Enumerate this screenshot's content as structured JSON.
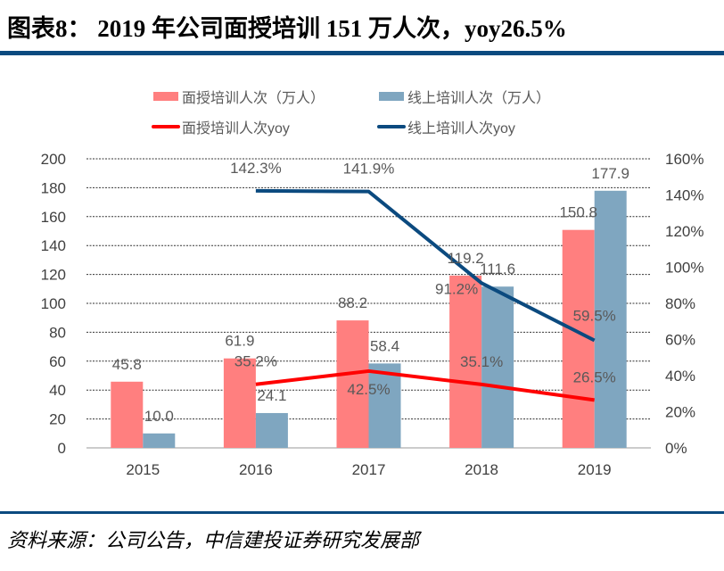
{
  "title": "图表8： 2019 年公司面授培训 151 万人次，yoy26.5%",
  "source": "资料来源：公司公告，中信建投证券研究发展部",
  "chart_data": {
    "type": "bar",
    "categories": [
      "2015",
      "2016",
      "2017",
      "2018",
      "2019"
    ],
    "series": [
      {
        "name": "面授培训人次（万人）",
        "kind": "bar",
        "axis": "left",
        "color": "#ff7f7f",
        "values": [
          45.8,
          61.9,
          88.2,
          119.2,
          150.8
        ],
        "labels": [
          "45.8",
          "61.9",
          "88.2",
          "119.2",
          "150.8"
        ]
      },
      {
        "name": "线上培训人次（万人）",
        "kind": "bar",
        "axis": "left",
        "color": "#7fa6c0",
        "values": [
          10.0,
          24.1,
          58.4,
          111.6,
          177.9
        ],
        "labels": [
          "10.0",
          "24.1",
          "58.4",
          "111.6",
          "177.9"
        ]
      },
      {
        "name": "面授培训人次yoy",
        "kind": "line",
        "axis": "right",
        "color": "#ff0000",
        "values": [
          null,
          35.2,
          42.5,
          35.1,
          26.5
        ],
        "labels": [
          "",
          "35.2%",
          "42.5%",
          "35.1%",
          "26.5%"
        ]
      },
      {
        "name": "线上培训人次yoy",
        "kind": "line",
        "axis": "right",
        "color": "#0b4a7f",
        "values": [
          null,
          142.3,
          141.9,
          91.2,
          59.5
        ],
        "labels": [
          "",
          "142.3%",
          "141.9%",
          "91.2%",
          "59.5%"
        ]
      }
    ],
    "ylim": [
      0,
      200
    ],
    "y_ticks": [
      "0",
      "20",
      "40",
      "60",
      "80",
      "100",
      "120",
      "140",
      "160",
      "180",
      "200"
    ],
    "y2lim": [
      0,
      160
    ],
    "y2_ticks": [
      "0%",
      "20%",
      "40%",
      "60%",
      "80%",
      "100%",
      "120%",
      "140%",
      "160%"
    ],
    "grid": true,
    "legend": "top"
  }
}
